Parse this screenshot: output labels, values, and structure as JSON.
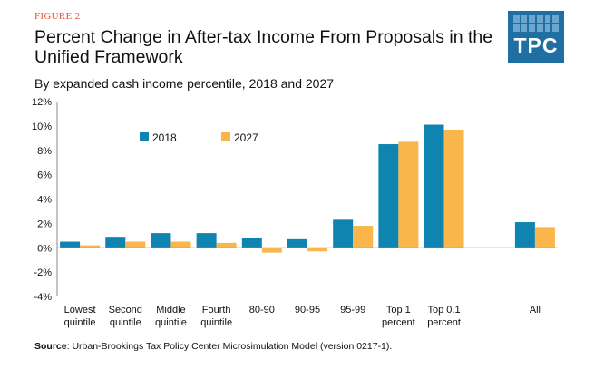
{
  "header": {
    "figure_label": "FIGURE 2",
    "title": "Percent Change in After-tax Income From Proposals in the Unified Framework",
    "subtitle": "By expanded cash income percentile, 2018 and 2027"
  },
  "logo": {
    "text": "TPC",
    "color": "#1f6fa3"
  },
  "source": {
    "label": "Source",
    "text": ": Urban-Brookings Tax Policy Center Microsimulation Model (version 0217-1)."
  },
  "chart_data": {
    "type": "bar",
    "categories": [
      [
        "Lowest",
        "quintile"
      ],
      [
        "Second",
        "quintile"
      ],
      [
        "Middle",
        "quintile"
      ],
      [
        "Fourth",
        "quintile"
      ],
      [
        "80-90"
      ],
      [
        "90-95"
      ],
      [
        "95-99"
      ],
      [
        "Top 1",
        "percent"
      ],
      [
        "Top 0.1",
        "percent"
      ],
      [],
      [
        "All"
      ]
    ],
    "series": [
      {
        "name": "2018",
        "color": "#0f84b0",
        "values": [
          0.5,
          0.9,
          1.2,
          1.2,
          0.8,
          0.7,
          2.3,
          8.5,
          10.1,
          null,
          2.1
        ]
      },
      {
        "name": "2027",
        "color": "#fbb64b",
        "values": [
          0.2,
          0.5,
          0.5,
          0.4,
          -0.4,
          -0.3,
          1.8,
          8.7,
          9.7,
          null,
          1.7
        ]
      }
    ],
    "ylim": [
      -4,
      12
    ],
    "yticks": [
      -4,
      -2,
      0,
      2,
      4,
      6,
      8,
      10,
      12
    ],
    "ytick_labels": [
      "-4%",
      "-2%",
      "0%",
      "2%",
      "4%",
      "6%",
      "8%",
      "10%",
      "12%"
    ],
    "legend_position": "top-left",
    "grid": false
  }
}
